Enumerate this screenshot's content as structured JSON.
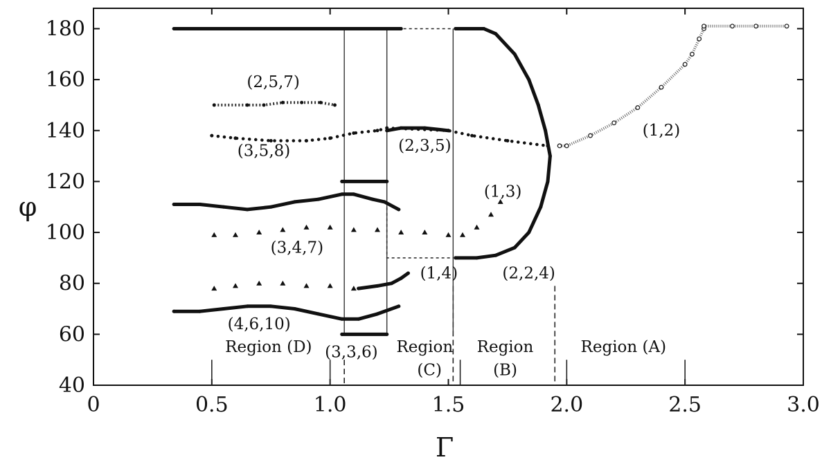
{
  "chart_data": {
    "type": "scatter",
    "title": "",
    "xlabel": "Γ",
    "ylabel": "φ",
    "xlim": [
      0,
      3.0
    ],
    "ylim": [
      40,
      188
    ],
    "xticks": [
      "0",
      "0.5",
      "1.0",
      "1.5",
      "2.0",
      "2.5",
      "3.0"
    ],
    "yticks": [
      "40",
      "60",
      "80",
      "100",
      "120",
      "140",
      "160",
      "180"
    ],
    "grid": false,
    "legend": "none",
    "series": [
      {
        "name": "(1,2)",
        "style": "open-circle",
        "points": [
          [
            1.97,
            134
          ],
          [
            2.0,
            134
          ],
          [
            2.1,
            138
          ],
          [
            2.2,
            143
          ],
          [
            2.3,
            149
          ],
          [
            2.4,
            157
          ],
          [
            2.5,
            166
          ],
          [
            2.53,
            170
          ],
          [
            2.56,
            176
          ],
          [
            2.58,
            180
          ]
        ]
      },
      {
        "name": "",
        "style": "open-circle",
        "points": [
          [
            2.58,
            181
          ],
          [
            2.7,
            181
          ],
          [
            2.8,
            181
          ],
          [
            2.93,
            181
          ]
        ]
      },
      {
        "name": "",
        "style": "solid",
        "points": [
          [
            0.34,
            180
          ],
          [
            1.3,
            180
          ]
        ]
      },
      {
        "name": "(2,2,4)",
        "style": "solid-dots",
        "points": [
          [
            1.53,
            180
          ],
          [
            1.65,
            180
          ],
          [
            1.7,
            178
          ],
          [
            1.78,
            170
          ],
          [
            1.84,
            160
          ],
          [
            1.88,
            150
          ],
          [
            1.91,
            140
          ],
          [
            1.93,
            130
          ],
          [
            1.92,
            120
          ],
          [
            1.89,
            110
          ],
          [
            1.84,
            100
          ],
          [
            1.78,
            94
          ],
          [
            1.7,
            91
          ],
          [
            1.62,
            90
          ],
          [
            1.53,
            90
          ]
        ]
      },
      {
        "name": "(1,3)",
        "style": "triangle",
        "points": [
          [
            1.56,
            99
          ],
          [
            1.62,
            102
          ],
          [
            1.68,
            107
          ],
          [
            1.72,
            112
          ]
        ]
      },
      {
        "name": "(2,3,5)",
        "style": "solid",
        "points": [
          [
            1.24,
            140
          ],
          [
            1.3,
            141
          ],
          [
            1.4,
            141
          ],
          [
            1.5,
            140
          ]
        ]
      },
      {
        "name": "(3,5,8)",
        "style": "dotted",
        "points": [
          [
            0.5,
            138
          ],
          [
            0.6,
            137
          ],
          [
            0.75,
            136
          ],
          [
            0.9,
            136
          ],
          [
            1.0,
            137
          ],
          [
            1.1,
            139
          ],
          [
            1.2,
            140
          ],
          [
            1.24,
            141
          ],
          [
            1.5,
            140
          ],
          [
            1.6,
            138
          ],
          [
            1.75,
            136
          ],
          [
            1.92,
            134
          ]
        ]
      },
      {
        "name": "(2,5,7)",
        "style": "mixed",
        "points": [
          [
            0.51,
            150
          ],
          [
            0.65,
            150
          ],
          [
            0.72,
            150
          ],
          [
            0.8,
            151
          ],
          [
            0.88,
            151
          ],
          [
            0.96,
            151
          ],
          [
            1.02,
            150
          ]
        ]
      },
      {
        "name": "",
        "style": "solid",
        "points": [
          [
            0.34,
            111
          ],
          [
            0.45,
            111
          ],
          [
            0.55,
            110
          ],
          [
            0.65,
            109
          ],
          [
            0.75,
            110
          ],
          [
            0.85,
            112
          ],
          [
            0.95,
            113
          ],
          [
            1.05,
            115
          ],
          [
            1.1,
            115
          ],
          [
            1.18,
            113
          ],
          [
            1.23,
            112
          ],
          [
            1.29,
            109
          ]
        ]
      },
      {
        "name": "(3,4,7)",
        "style": "triangle",
        "points": [
          [
            0.51,
            99
          ],
          [
            0.6,
            99
          ],
          [
            0.7,
            100
          ],
          [
            0.8,
            101
          ],
          [
            0.9,
            102
          ],
          [
            1.0,
            102
          ],
          [
            1.1,
            101
          ],
          [
            1.2,
            101
          ],
          [
            1.3,
            100
          ],
          [
            1.4,
            100
          ],
          [
            1.5,
            99
          ]
        ]
      },
      {
        "name": "",
        "style": "solid",
        "points": [
          [
            1.05,
            120
          ],
          [
            1.24,
            120
          ]
        ]
      },
      {
        "name": "(1,4)",
        "style": "solid",
        "points": [
          [
            1.12,
            78
          ],
          [
            1.2,
            79
          ],
          [
            1.26,
            80
          ],
          [
            1.3,
            82
          ],
          [
            1.33,
            84
          ]
        ]
      },
      {
        "name": "",
        "style": "triangle",
        "points": [
          [
            0.51,
            78
          ],
          [
            0.6,
            79
          ],
          [
            0.7,
            80
          ],
          [
            0.8,
            80
          ],
          [
            0.9,
            79
          ],
          [
            1.0,
            79
          ],
          [
            1.1,
            78
          ]
        ]
      },
      {
        "name": "(4,6,10)",
        "style": "solid",
        "points": [
          [
            0.34,
            69
          ],
          [
            0.45,
            69
          ],
          [
            0.55,
            70
          ],
          [
            0.65,
            71
          ],
          [
            0.75,
            71
          ],
          [
            0.85,
            70
          ],
          [
            0.95,
            68
          ],
          [
            1.05,
            66
          ],
          [
            1.12,
            66
          ],
          [
            1.2,
            68
          ],
          [
            1.29,
            71
          ]
        ]
      },
      {
        "name": "(3,3,6)",
        "style": "solid-dots",
        "points": [
          [
            1.05,
            60
          ],
          [
            1.24,
            60
          ]
        ]
      }
    ],
    "annotations": [
      {
        "text": "(2,5,7)",
        "x": 0.76,
        "y": 157
      },
      {
        "text": "(3,5,8)",
        "x": 0.72,
        "y": 130
      },
      {
        "text": "(2,3,5)",
        "x": 1.4,
        "y": 132
      },
      {
        "text": "(1,2)",
        "x": 2.4,
        "y": 138
      },
      {
        "text": "(1,3)",
        "x": 1.73,
        "y": 114
      },
      {
        "text": "(3,4,7)",
        "x": 0.86,
        "y": 92
      },
      {
        "text": "(1,4)",
        "x": 1.46,
        "y": 82
      },
      {
        "text": "(2,2,4)",
        "x": 1.84,
        "y": 82
      },
      {
        "text": "(4,6,10)",
        "x": 0.7,
        "y": 62
      },
      {
        "text": "(3,3,6)",
        "x": 1.09,
        "y": 51
      },
      {
        "text": "Region (D)",
        "x": 0.74,
        "y": 53
      },
      {
        "text": "Region",
        "x": 1.4,
        "y": 53
      },
      {
        "text": "(C)",
        "x": 1.42,
        "y": 44
      },
      {
        "text": "Region",
        "x": 1.74,
        "y": 53
      },
      {
        "text": "(B)",
        "x": 1.74,
        "y": 44
      },
      {
        "text": "Region (A)",
        "x": 2.24,
        "y": 53
      }
    ],
    "region_boundaries": [
      0.5,
      1.0,
      1.06,
      1.52,
      1.55,
      1.95,
      2.0,
      2.5
    ],
    "vertical_lines": [
      1.06,
      1.24,
      1.52
    ],
    "dashed_links": [
      {
        "points": [
          [
            1.24,
            180
          ],
          [
            1.52,
            180
          ]
        ]
      },
      {
        "points": [
          [
            1.24,
            112
          ],
          [
            1.24,
            90
          ],
          [
            1.52,
            90
          ]
        ]
      }
    ]
  }
}
